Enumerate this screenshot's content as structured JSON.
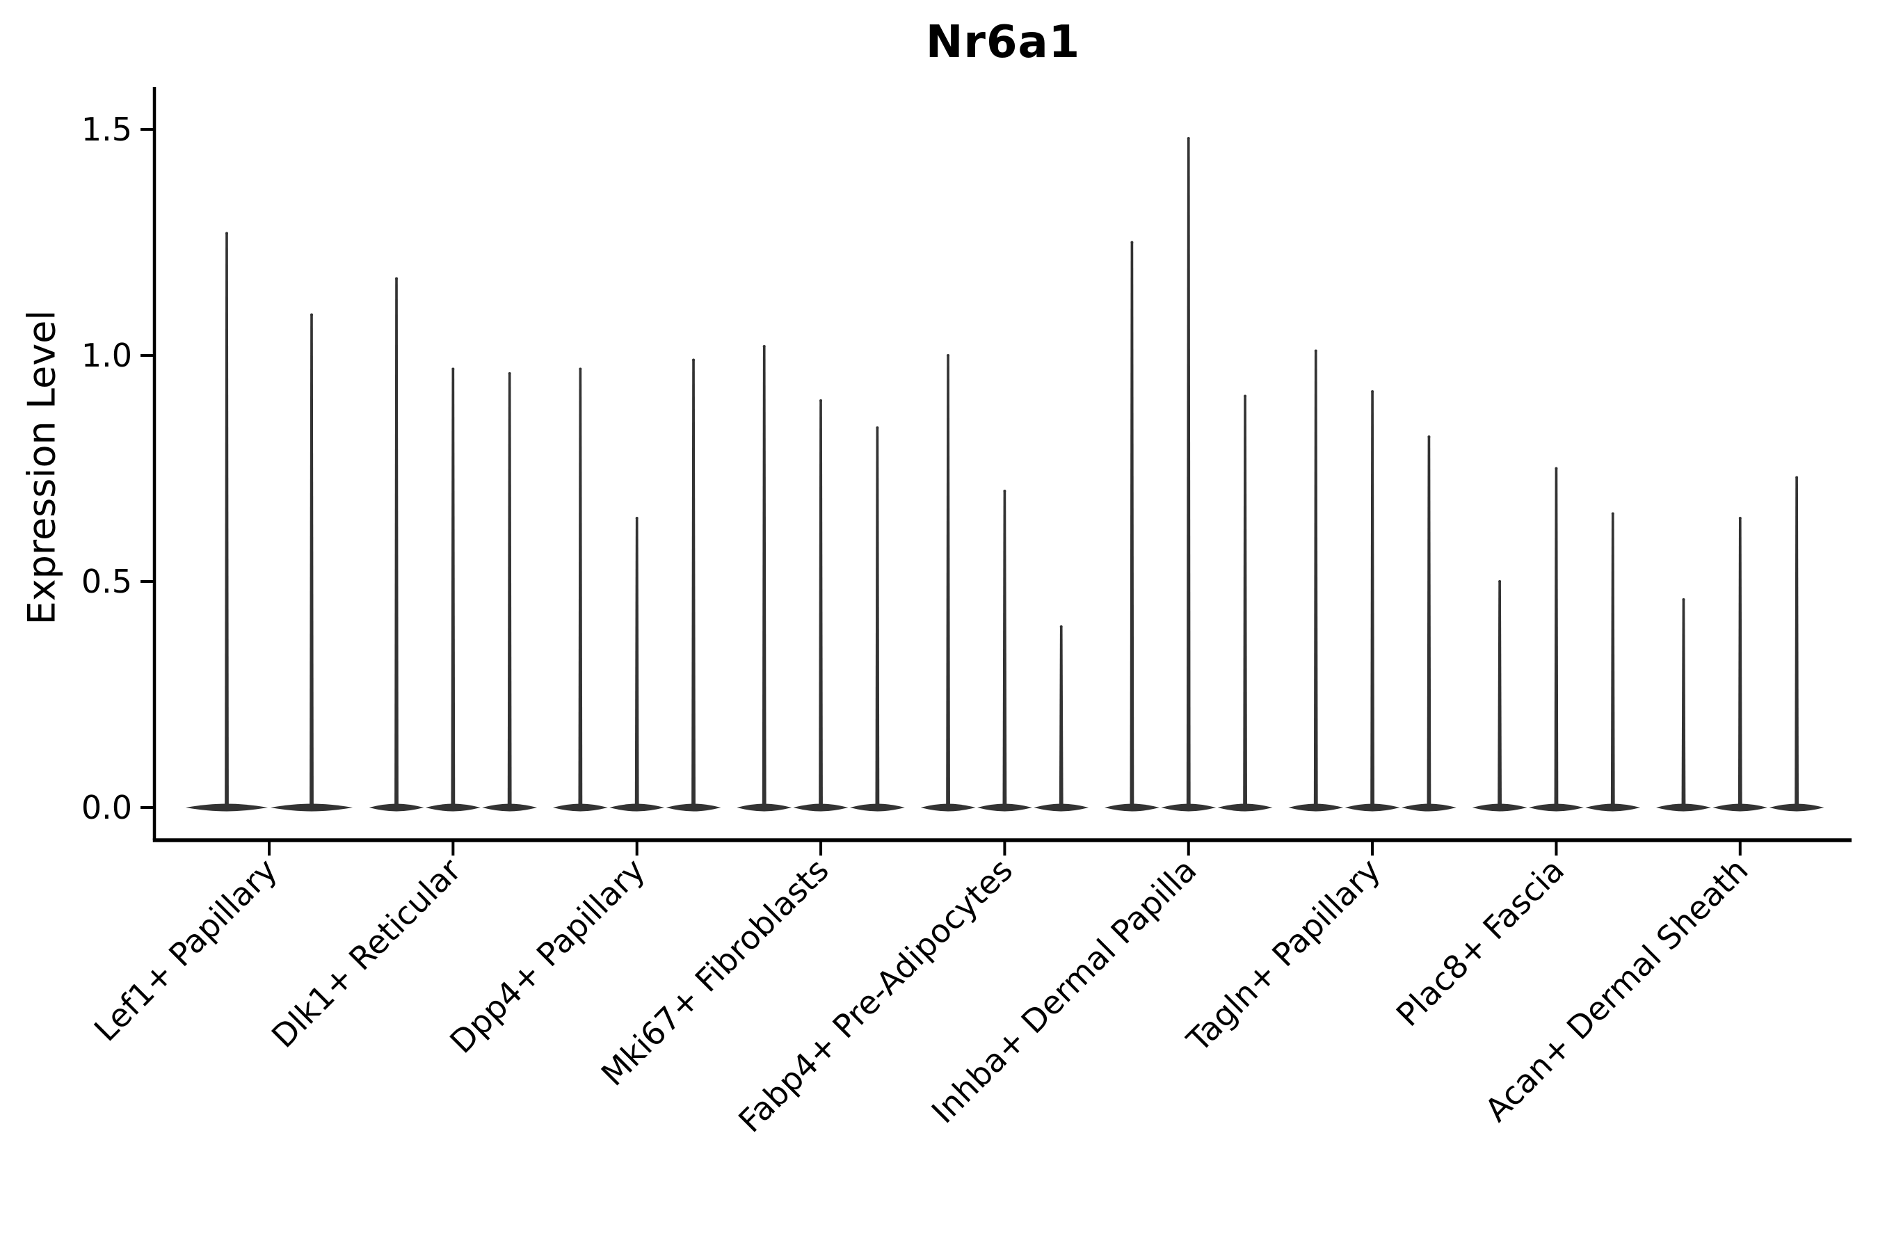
{
  "chart_data": {
    "type": "violin",
    "title": "Nr6a1",
    "ylabel": "Expression Level",
    "xlabel": "",
    "grid": false,
    "legend_position": "none",
    "ylim": [
      -0.07,
      1.6
    ],
    "ytick_labels": [
      "0.0",
      "0.5",
      "1.0",
      "1.5"
    ],
    "ytick_values": [
      0,
      0.5,
      1.0,
      1.5
    ],
    "categories": [
      "Lef1+ Papillary",
      "Dlk1+ Reticular",
      "Dpp4+ Papillary",
      "Mki67+ Fibroblasts",
      "Fabp4+ Pre-Adipocytes",
      "Inhba+ Dermal Papilla",
      "Tagln+ Papillary",
      "Plac8+ Fascia",
      "Acan+ Dermal Sheath"
    ],
    "series": [
      {
        "category": "Lef1+ Papillary",
        "violin_peak_values": [
          1.27,
          1.09
        ]
      },
      {
        "category": "Dlk1+ Reticular",
        "violin_peak_values": [
          1.17,
          0.97,
          0.96
        ]
      },
      {
        "category": "Dpp4+ Papillary",
        "violin_peak_values": [
          0.97,
          0.64,
          0.99
        ]
      },
      {
        "category": "Mki67+ Fibroblasts",
        "violin_peak_values": [
          1.02,
          0.9,
          0.84
        ]
      },
      {
        "category": "Fabp4+ Pre-Adipocytes",
        "violin_peak_values": [
          1.0,
          0.7,
          0.4
        ]
      },
      {
        "category": "Inhba+ Dermal Papilla",
        "violin_peak_values": [
          1.25,
          1.48,
          0.91
        ]
      },
      {
        "category": "Tagln+ Papillary",
        "violin_peak_values": [
          1.01,
          0.92,
          0.82
        ]
      },
      {
        "category": "Plac8+ Fascia",
        "violin_peak_values": [
          0.5,
          0.75,
          0.65
        ]
      },
      {
        "category": "Acan+ Dermal Sheath",
        "violin_peak_values": [
          0.46,
          0.64,
          0.73
        ]
      }
    ],
    "colors": {
      "violin_fill": "#333333",
      "axis": "#000000",
      "text": "#000000",
      "background": "#ffffff"
    }
  }
}
